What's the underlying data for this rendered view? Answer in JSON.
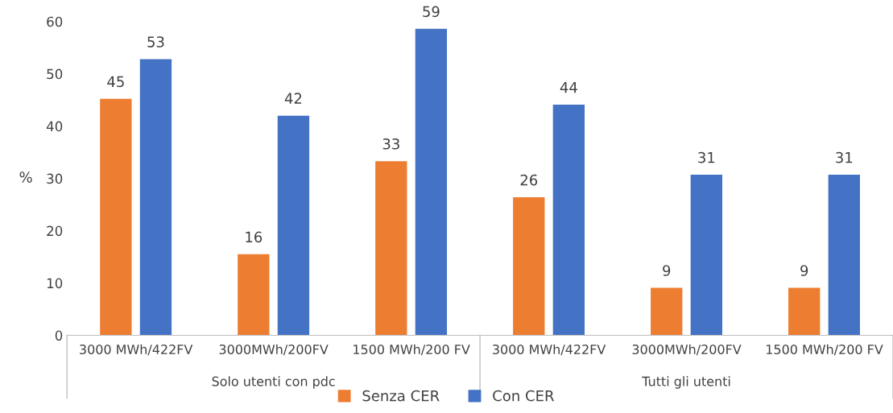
{
  "chart_data": {
    "type": "bar",
    "ylabel": "%",
    "categories": [
      "3000 MWh/422FV",
      "3000MWh/200FV",
      "1500 MWh/200 FV",
      "3000 MWh/422FV",
      "3000MWh/200FV",
      "1500 MWh/200 FV"
    ],
    "series": [
      {
        "name": "Senza CER",
        "color": "#ed7d31",
        "values": [
          45.2,
          15.5,
          33.3,
          26.4,
          9.1,
          9.1
        ],
        "value_labels": [
          "45",
          "16",
          "33",
          "26",
          "9",
          "9"
        ]
      },
      {
        "name": "Con CER",
        "color": "#4472c4",
        "values": [
          52.8,
          42.0,
          58.6,
          44.1,
          30.7,
          30.7
        ],
        "value_labels": [
          "53",
          "42",
          "59",
          "44",
          "31",
          "31"
        ]
      }
    ],
    "annotations": [
      "Solo utenti con pdc",
      "Tutti gli utenti"
    ],
    "ylim": [
      0,
      60
    ],
    "yticks": [
      0,
      10,
      20,
      30,
      40,
      50,
      60
    ],
    "grid": false,
    "legend": "bottom"
  }
}
